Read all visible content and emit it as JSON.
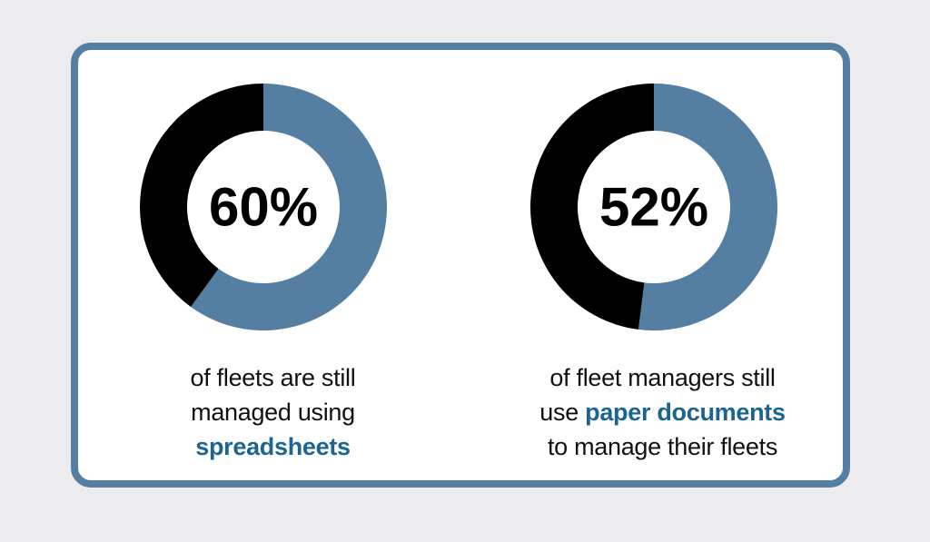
{
  "colors": {
    "background": "#ececef",
    "card_border": "#557ea3",
    "filled_segment": "#557ea3",
    "remaining_segment": "#000000",
    "highlight_text": "#1c6591"
  },
  "chart_data": [
    {
      "type": "pie",
      "variant": "donut",
      "value": 60,
      "center_label": "60%",
      "slices": [
        {
          "label": "spreadsheets",
          "value": 60,
          "color": "#557ea3"
        },
        {
          "label": "",
          "value": 40,
          "color": "#000000"
        }
      ],
      "caption": {
        "line1": "of fleets are still",
        "line2": "managed using",
        "line3_highlight": "spreadsheets"
      }
    },
    {
      "type": "pie",
      "variant": "donut",
      "value": 52,
      "center_label": "52%",
      "slices": [
        {
          "label": "paper documents",
          "value": 52,
          "color": "#557ea3"
        },
        {
          "label": "",
          "value": 48,
          "color": "#000000"
        }
      ],
      "caption": {
        "line1": "of fleet managers still",
        "line2_prefix": "use ",
        "line2_highlight": "paper documents",
        "line3": "to manage their fleets"
      }
    }
  ]
}
